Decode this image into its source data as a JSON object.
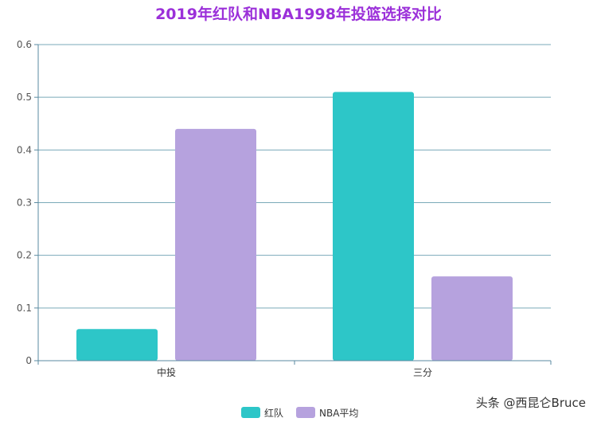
{
  "chart_data": {
    "type": "bar",
    "title": "2019年红队和NBA1998年投篮选择对比",
    "categories": [
      "中投",
      "三分"
    ],
    "series": [
      {
        "name": "红队",
        "values": [
          0.06,
          0.51
        ],
        "color": "#2dc6c8"
      },
      {
        "name": "NBA平均",
        "values": [
          0.44,
          0.16
        ],
        "color": "#b6a2de"
      }
    ],
    "ylim": [
      0,
      0.6
    ],
    "yticks": [
      "0",
      "0.1",
      "0.2",
      "0.3",
      "0.4",
      "0.5",
      "0.6"
    ],
    "xlabel": "",
    "ylabel": "",
    "grid": true,
    "legend_position": "bottom-center"
  },
  "colors": {
    "title": "#9b30d9",
    "grid": "#7aaab9",
    "axis": "#5a8aa0"
  },
  "watermark": "头条 @西昆仑Bruce"
}
